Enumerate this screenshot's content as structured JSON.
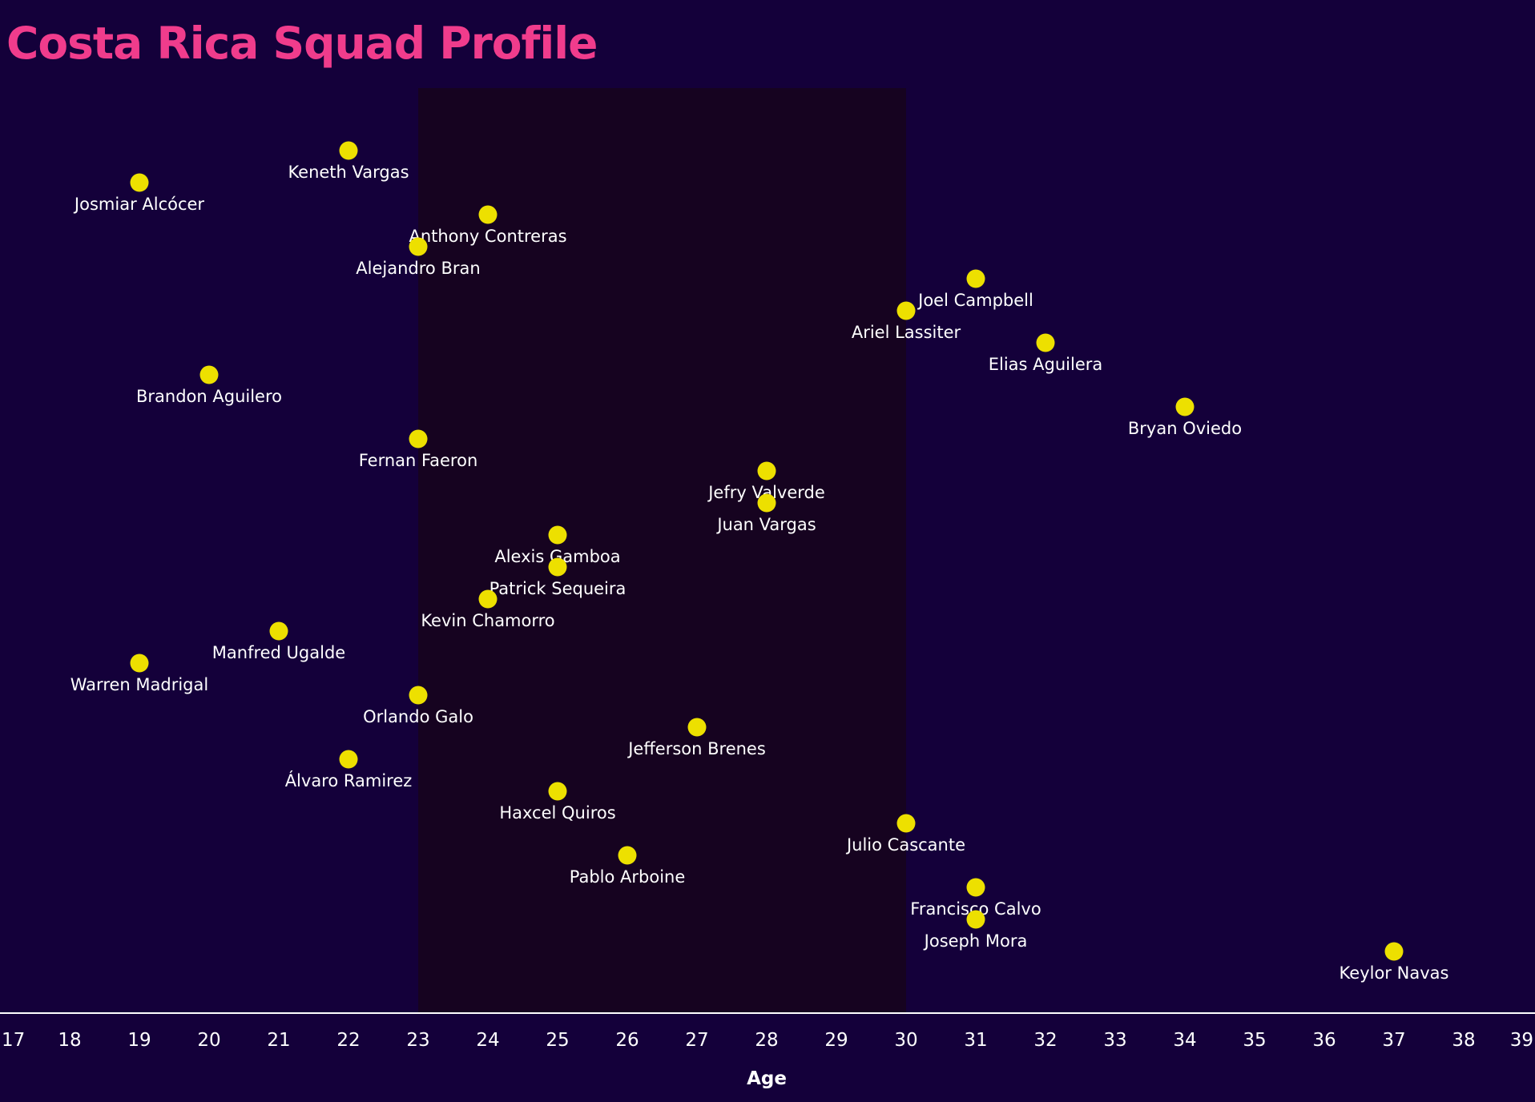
{
  "chart_data": {
    "type": "scatter",
    "title": "Costa Rica Squad Profile",
    "xlabel": "Age",
    "ylabel": "",
    "xlim": [
      17,
      39
    ],
    "x_ticks": [
      17,
      18,
      19,
      20,
      21,
      22,
      23,
      24,
      25,
      26,
      27,
      28,
      29,
      30,
      31,
      32,
      33,
      34,
      35,
      36,
      37,
      38,
      39
    ],
    "highlight_band": {
      "x_start": 23,
      "x_end": 30
    },
    "points": [
      {
        "name": "Keneth Vargas",
        "age": 22
      },
      {
        "name": "Josmiar Alcócer",
        "age": 19
      },
      {
        "name": "Anthony Contreras",
        "age": 24
      },
      {
        "name": "Alejandro Bran",
        "age": 23
      },
      {
        "name": "Joel Campbell",
        "age": 31
      },
      {
        "name": "Ariel Lassiter",
        "age": 30
      },
      {
        "name": "Elias Aguilera",
        "age": 32
      },
      {
        "name": "Brandon Aguilero",
        "age": 20
      },
      {
        "name": "Bryan Oviedo",
        "age": 34
      },
      {
        "name": "Fernan Faeron",
        "age": 23
      },
      {
        "name": "Jefry Valverde",
        "age": 28
      },
      {
        "name": "Juan Vargas",
        "age": 28
      },
      {
        "name": "Alexis Gamboa",
        "age": 25
      },
      {
        "name": "Patrick Sequeira",
        "age": 25
      },
      {
        "name": "Kevin Chamorro",
        "age": 24
      },
      {
        "name": "Manfred Ugalde",
        "age": 21
      },
      {
        "name": "Warren Madrigal",
        "age": 19
      },
      {
        "name": "Orlando Galo",
        "age": 23
      },
      {
        "name": "Jefferson Brenes",
        "age": 27
      },
      {
        "name": "Álvaro Ramirez",
        "age": 22
      },
      {
        "name": "Haxcel Quiros",
        "age": 25
      },
      {
        "name": "Julio Cascante",
        "age": 30
      },
      {
        "name": "Pablo Arboine",
        "age": 26
      },
      {
        "name": "Francisco Calvo",
        "age": 31
      },
      {
        "name": "Joseph Mora",
        "age": 31
      },
      {
        "name": "Keylor Navas",
        "age": 37
      }
    ]
  },
  "colors": {
    "background": "#14003a",
    "band": "#160320",
    "point": "#ede000",
    "title": "#f03c8c",
    "text": "#ffffff"
  }
}
